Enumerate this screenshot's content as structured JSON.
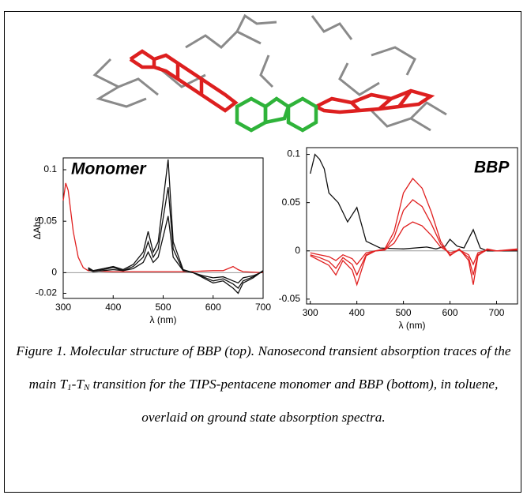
{
  "chart_data": [
    {
      "type": "line",
      "annotation": "Monomer",
      "annotation_color": "#3a3acc",
      "ylabel": "ΔAbs",
      "xlabel": "λ (nm)",
      "xlim": [
        300,
        700
      ],
      "xticks": [
        300,
        400,
        500,
        600,
        700
      ],
      "ylim": [
        -0.025,
        0.1115
      ],
      "yticks": [
        -0.02,
        0,
        0.05,
        0.1
      ],
      "hline": 0,
      "hline_color": "#999999",
      "series": [
        {
          "color": "#e02020",
          "x": [
            300,
            305,
            310,
            320,
            330,
            340,
            350,
            400,
            450,
            500,
            550,
            600,
            620,
            640,
            650,
            660,
            700
          ],
          "values": [
            0.07,
            0.087,
            0.08,
            0.04,
            0.015,
            0.005,
            0.002,
            0.001,
            0.001,
            0.001,
            0.001,
            0.002,
            0.002,
            0.006,
            0.003,
            0.001,
            0.0
          ]
        },
        {
          "color": "#111111",
          "x": [
            350,
            360,
            380,
            400,
            420,
            440,
            460,
            470,
            480,
            490,
            500,
            510,
            520,
            540,
            560,
            580,
            600,
            620,
            640,
            650,
            660,
            680,
            700
          ],
          "values": [
            0.005,
            0.002,
            0.004,
            0.006,
            0.003,
            0.008,
            0.02,
            0.04,
            0.02,
            0.03,
            0.07,
            0.11,
            0.03,
            0.003,
            0.0,
            -0.005,
            -0.01,
            -0.008,
            -0.015,
            -0.02,
            -0.01,
            -0.005,
            0.002
          ]
        },
        {
          "color": "#111111",
          "x": [
            350,
            360,
            380,
            400,
            420,
            440,
            460,
            470,
            480,
            490,
            500,
            510,
            520,
            540,
            560,
            580,
            600,
            620,
            640,
            650,
            660,
            680,
            700
          ],
          "values": [
            0.004,
            0.002,
            0.003,
            0.005,
            0.002,
            0.006,
            0.015,
            0.03,
            0.015,
            0.023,
            0.053,
            0.083,
            0.023,
            0.002,
            0.0,
            -0.004,
            -0.008,
            -0.006,
            -0.011,
            -0.015,
            -0.008,
            -0.004,
            0.002
          ]
        },
        {
          "color": "#111111",
          "x": [
            350,
            360,
            380,
            400,
            420,
            440,
            460,
            470,
            480,
            490,
            500,
            510,
            520,
            540,
            560,
            580,
            600,
            620,
            640,
            650,
            660,
            680,
            700
          ],
          "values": [
            0.003,
            0.001,
            0.002,
            0.003,
            0.002,
            0.004,
            0.01,
            0.02,
            0.01,
            0.015,
            0.035,
            0.055,
            0.015,
            0.002,
            0.0,
            -0.003,
            -0.005,
            -0.004,
            -0.008,
            -0.01,
            -0.005,
            -0.003,
            0.001
          ]
        }
      ]
    },
    {
      "type": "line",
      "annotation": "BBP",
      "annotation_color": "#2fae3a",
      "xlabel": "λ (nm)",
      "xlim": [
        292,
        745
      ],
      "xticks": [
        300,
        400,
        500,
        600,
        700
      ],
      "ylim": [
        -0.055,
        0.107
      ],
      "yticks": [
        -0.05,
        0,
        0.05,
        0.1
      ],
      "hline": 0,
      "hline_color": "#999999",
      "series": [
        {
          "color": "#111111",
          "x": [
            300,
            310,
            320,
            330,
            340,
            350,
            360,
            380,
            400,
            420,
            450,
            500,
            550,
            570,
            590,
            600,
            615,
            630,
            650,
            665,
            680,
            745
          ],
          "values": [
            0.08,
            0.1,
            0.095,
            0.085,
            0.06,
            0.055,
            0.05,
            0.03,
            0.045,
            0.01,
            0.003,
            0.002,
            0.004,
            0.002,
            0.005,
            0.012,
            0.005,
            0.003,
            0.022,
            0.003,
            0.0,
            0.0
          ]
        },
        {
          "color": "#e02020",
          "x": [
            300,
            320,
            340,
            355,
            370,
            390,
            400,
            420,
            440,
            460,
            480,
            500,
            520,
            540,
            560,
            580,
            600,
            620,
            640,
            650,
            660,
            680,
            700,
            745
          ],
          "values": [
            -0.005,
            -0.01,
            -0.015,
            -0.025,
            -0.01,
            -0.02,
            -0.035,
            -0.005,
            0.0,
            0.002,
            0.02,
            0.06,
            0.075,
            0.065,
            0.04,
            0.01,
            -0.005,
            0.002,
            -0.01,
            -0.035,
            -0.005,
            0.002,
            0.0,
            0.002
          ]
        },
        {
          "color": "#e02020",
          "x": [
            300,
            320,
            340,
            355,
            370,
            390,
            400,
            420,
            440,
            460,
            480,
            500,
            520,
            540,
            560,
            580,
            600,
            620,
            640,
            650,
            660,
            680,
            700,
            745
          ],
          "values": [
            -0.004,
            -0.007,
            -0.011,
            -0.018,
            -0.007,
            -0.014,
            -0.025,
            -0.004,
            0.0,
            0.001,
            0.014,
            0.042,
            0.053,
            0.046,
            0.028,
            0.007,
            -0.004,
            0.001,
            -0.007,
            -0.025,
            -0.004,
            0.001,
            0.0,
            0.001
          ]
        },
        {
          "color": "#e02020",
          "x": [
            300,
            320,
            340,
            355,
            370,
            390,
            400,
            420,
            440,
            460,
            480,
            500,
            520,
            540,
            560,
            580,
            600,
            620,
            640,
            650,
            660,
            680,
            700,
            745
          ],
          "values": [
            -0.002,
            -0.004,
            -0.006,
            -0.01,
            -0.004,
            -0.008,
            -0.014,
            -0.002,
            0.0,
            0.001,
            0.008,
            0.024,
            0.03,
            0.026,
            0.016,
            0.004,
            -0.002,
            0.001,
            -0.004,
            -0.014,
            -0.002,
            0.001,
            0.0,
            0.001
          ]
        }
      ]
    }
  ],
  "caption": [
    "Figure 1. Molecular structure of BBP (top). Nanosecond transient absorption traces of the main T",
    "1",
    "-T",
    "N",
    " transition for the TIPS-pentacene monomer and BBP (bottom), in toluene, overlaid on ground state absorption spectra."
  ]
}
